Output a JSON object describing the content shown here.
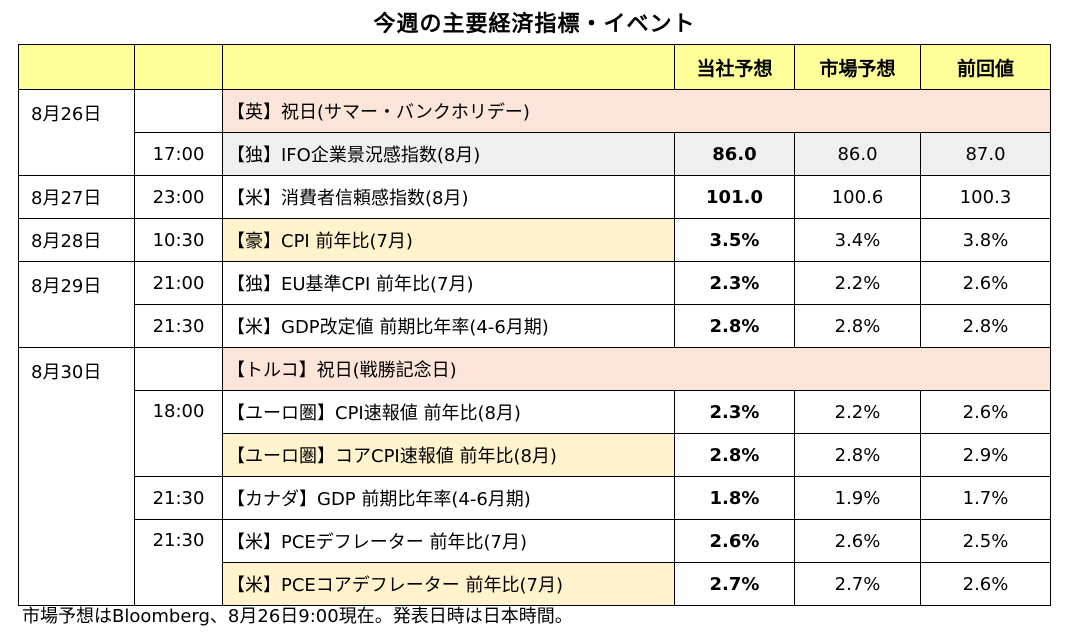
{
  "title": "今週の主要経済指標・イベント",
  "header": {
    "forecast": "当社予想",
    "market": "市場予想",
    "previous": "前回値"
  },
  "rows": [
    {
      "date": "8月26日",
      "time": "",
      "event": "【英】祝日(サマー・バンクホリデー)",
      "forecast": "",
      "market": "",
      "previous": ""
    },
    {
      "date": "",
      "time": "17:00",
      "event": "【独】IFO企業景況感指数(8月)",
      "forecast": "86.0",
      "market": "86.0",
      "previous": "87.0"
    },
    {
      "date": "8月27日",
      "time": "23:00",
      "event": "【米】消費者信頼感指数(8月)",
      "forecast": "101.0",
      "market": "100.6",
      "previous": "100.3"
    },
    {
      "date": "8月28日",
      "time": "10:30",
      "event": "【豪】CPI 前年比(7月)",
      "forecast": "3.5%",
      "market": "3.4%",
      "previous": "3.8%"
    },
    {
      "date": "8月29日",
      "time": "21:00",
      "event": "【独】EU基準CPI 前年比(7月)",
      "forecast": "2.3%",
      "market": "2.2%",
      "previous": "2.6%"
    },
    {
      "date": "",
      "time": "21:30",
      "event": "【米】GDP改定値 前期比年率(4-6月期)",
      "forecast": "2.8%",
      "market": "2.8%",
      "previous": "2.8%"
    },
    {
      "date": "8月30日",
      "time": "",
      "event": "【トルコ】祝日(戦勝記念日)",
      "forecast": "",
      "market": "",
      "previous": ""
    },
    {
      "date": "",
      "time": "18:00",
      "event": "【ユーロ圏】CPI速報値 前年比(8月)",
      "forecast": "2.3%",
      "market": "2.2%",
      "previous": "2.6%"
    },
    {
      "date": "",
      "time": "",
      "event": "【ユーロ圏】コアCPI速報値 前年比(8月)",
      "forecast": "2.8%",
      "market": "2.8%",
      "previous": "2.9%"
    },
    {
      "date": "",
      "time": "21:30",
      "event": "【カナダ】GDP 前期比年率(4-6月期)",
      "forecast": "1.8%",
      "market": "1.9%",
      "previous": "1.7%"
    },
    {
      "date": "",
      "time": "21:30",
      "event": "【米】PCEデフレーター 前年比(7月)",
      "forecast": "2.6%",
      "market": "2.6%",
      "previous": "2.5%"
    },
    {
      "date": "",
      "time": "",
      "event": "【米】PCEコアデフレーター 前年比(7月)",
      "forecast": "2.7%",
      "market": "2.7%",
      "previous": "2.6%"
    }
  ],
  "note": "市場予想はBloomberg、8月26日9:00現在。発表日時は日本時間。",
  "colors": {
    "header": "#ffff99",
    "row_grey": "#efefef",
    "row_pink": "#fde4d8",
    "row_yellow": "#fff2cc"
  }
}
